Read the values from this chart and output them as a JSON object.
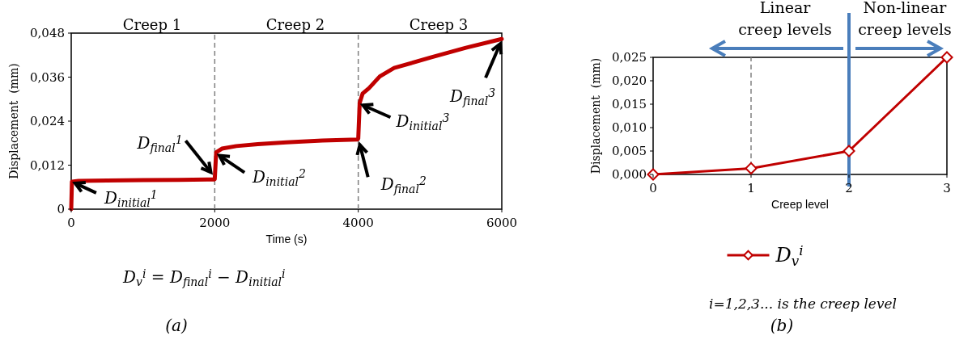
{
  "chart_data": [
    {
      "type": "line",
      "xlabel": "Time (s)",
      "ylabel": "Displacement  (mm)",
      "x": [
        0,
        10,
        100,
        500,
        1000,
        1500,
        1990,
        2000,
        2020,
        2100,
        2300,
        2600,
        3000,
        3500,
        3990,
        4000,
        4020,
        4060,
        4150,
        4300,
        4500,
        5000,
        5500,
        6000
      ],
      "series": [
        {
          "color": "#c00000",
          "values": [
            0,
            0.0075,
            0.0077,
            0.0078,
            0.0079,
            0.008,
            0.0081,
            0.0082,
            0.0155,
            0.0165,
            0.0172,
            0.0177,
            0.0182,
            0.0187,
            0.019,
            0.0193,
            0.029,
            0.0315,
            0.033,
            0.0362,
            0.0385,
            0.0413,
            0.044,
            0.0464
          ]
        }
      ],
      "xlim": [
        0,
        6000
      ],
      "xticks": [
        0,
        2000,
        4000,
        6000
      ],
      "ylim": [
        0,
        0.048
      ],
      "yticks": [
        0,
        {
          "value": 0.012,
          "label": "0,012"
        },
        {
          "value": 0.024,
          "label": "0,024"
        },
        {
          "value": 0.036,
          "label": "0,036"
        },
        {
          "value": 0.048,
          "label": "0,048"
        }
      ],
      "grid": false,
      "ref_lines": [
        {
          "axis": "x",
          "value": 2000,
          "color": "#808080",
          "line_style": "dashed"
        },
        {
          "axis": "x",
          "value": 4000,
          "color": "#808080",
          "line_style": "dashed"
        }
      ],
      "annotations": [
        "Creep 1",
        "Creep 2",
        "Creep 3",
        {
          "text": "D$_{initial}$$^{1}$",
          "x": 10,
          "y": 0.0075
        },
        {
          "text": "D$_{final}$$^{1}$",
          "x": 1990,
          "y": 0.0081
        },
        {
          "text": "D$_{initial}$$^{2}$",
          "x": 2020,
          "y": 0.0155
        },
        {
          "text": "D$_{final}$$^{2}$",
          "x": 4000,
          "y": 0.0193
        },
        {
          "text": "D$_{initial}$$^{3}$",
          "x": 4020,
          "y": 0.029
        },
        {
          "text": "D$_{final}$$^{3}$",
          "x": 6000,
          "y": 0.0464
        },
        "D$_{v}$$^{i}$ = D$_{final}$$^{i}$ − D$_{initial}$$^{i}$",
        "(a)"
      ]
    },
    {
      "type": "line",
      "xlabel": "Creep level",
      "ylabel": "Displacement  (mm)",
      "x": [
        0,
        1,
        2,
        3
      ],
      "series": [
        {
          "name": "D$_{v}$$^{i}$",
          "color": "#c00000",
          "values": [
            0,
            0.0013,
            0.005,
            0.025
          ]
        }
      ],
      "xlim": [
        0,
        3
      ],
      "xticks": [
        0,
        1,
        2,
        3
      ],
      "ylim": [
        0,
        0.025
      ],
      "yticks": [
        {
          "value": 0,
          "label": "0,000"
        },
        {
          "value": 0.005,
          "label": "0,005"
        },
        {
          "value": 0.01,
          "label": "0,010"
        },
        {
          "value": 0.015,
          "label": "0,015"
        },
        {
          "value": 0.02,
          "label": "0,020"
        },
        {
          "value": 0.025,
          "label": "0,025"
        }
      ],
      "grid": false,
      "marker": "diamond",
      "legend": "bottom",
      "ref_lines": [
        {
          "axis": "x",
          "value": 1,
          "color": "#808080",
          "line_style": "dashed"
        },
        {
          "axis": "x",
          "value": 2,
          "color": "#4a7ebb",
          "line_style": "solid"
        }
      ],
      "annotations": [
        "Linear\ncreep levels",
        "Non-linear\ncreep levels",
        "i=1,2,3... is the creep level",
        "(b)"
      ]
    }
  ]
}
